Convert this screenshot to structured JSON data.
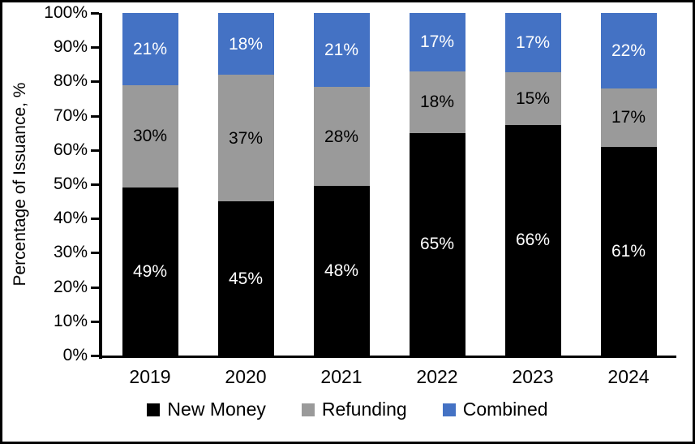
{
  "chart_data": {
    "type": "bar",
    "stacked": true,
    "title": "",
    "xlabel": "",
    "ylabel": "Percentage of Issuance, %",
    "ylim": [
      0,
      100
    ],
    "yticks": [
      "0%",
      "10%",
      "20%",
      "30%",
      "40%",
      "50%",
      "60%",
      "70%",
      "80%",
      "90%",
      "100%"
    ],
    "ytick_values": [
      0,
      10,
      20,
      30,
      40,
      50,
      60,
      70,
      80,
      90,
      100
    ],
    "categories": [
      "2019",
      "2020",
      "2021",
      "2022",
      "2023",
      "2024"
    ],
    "series": [
      {
        "name": "New Money",
        "color": "#000000",
        "label_color": "#ffffff",
        "values": [
          49,
          45,
          48,
          65,
          66,
          61
        ],
        "labels": [
          "49%",
          "45%",
          "48%",
          "65%",
          "66%",
          "61%"
        ]
      },
      {
        "name": "Refunding",
        "color": "#9A9A9A",
        "label_color": "#000000",
        "values": [
          30,
          37,
          28,
          18,
          15,
          17
        ],
        "labels": [
          "30%",
          "37%",
          "28%",
          "18%",
          "15%",
          "17%"
        ]
      },
      {
        "name": "Combined",
        "color": "#4472C4",
        "label_color": "#ffffff",
        "values": [
          21,
          18,
          21,
          17,
          17,
          22
        ],
        "labels": [
          "21%",
          "18%",
          "21%",
          "17%",
          "17%",
          "22%"
        ]
      }
    ],
    "grid": false,
    "legend_position": "bottom",
    "value_suffix": "%"
  }
}
